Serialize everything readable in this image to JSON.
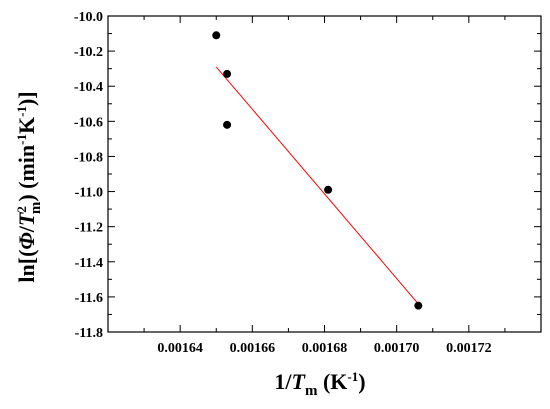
{
  "chart_data": {
    "type": "scatter",
    "xlabel": {
      "base": "1/",
      "italic": "T",
      "sub": "m",
      "unit_open": " (K",
      "sup": "-1",
      "unit_close": ")"
    },
    "ylabel": {
      "pre": "ln[(",
      "phi": "Φ",
      "slash": "/",
      "italic": "T",
      "sup2": "2",
      "sub": "m",
      "mid": ") (min",
      "sup1": "-1",
      "k": "K",
      "sup3": "-1",
      "post": ")]"
    },
    "xlim": [
      0.00162,
      0.00174
    ],
    "ylim": [
      -11.8,
      -10.0
    ],
    "xticks": [
      0.00164,
      0.00166,
      0.00168,
      0.0017,
      0.00172
    ],
    "xtick_labels": [
      "0.00164",
      "0.00166",
      "0.00168",
      "0.00170",
      "0.00172"
    ],
    "yticks": [
      -10.0,
      -10.2,
      -10.4,
      -10.6,
      -10.8,
      -11.0,
      -11.2,
      -11.4,
      -11.6,
      -11.8
    ],
    "ytick_labels": [
      "-10.0",
      "-10.2",
      "-10.4",
      "-10.6",
      "-10.8",
      "-11.0",
      "-11.2",
      "-11.4",
      "-11.6",
      "-11.8"
    ],
    "points": [
      {
        "x": 0.00165,
        "y": -10.11
      },
      {
        "x": 0.001653,
        "y": -10.33
      },
      {
        "x": 0.001653,
        "y": -10.62
      },
      {
        "x": 0.001681,
        "y": -10.99
      },
      {
        "x": 0.001706,
        "y": -11.65
      }
    ],
    "fit_line": {
      "x": [
        0.00165,
        0.001706
      ],
      "y": [
        -10.29,
        -11.64
      ],
      "color": "#ff0000"
    },
    "marker_color": "#000000",
    "grid": false
  }
}
